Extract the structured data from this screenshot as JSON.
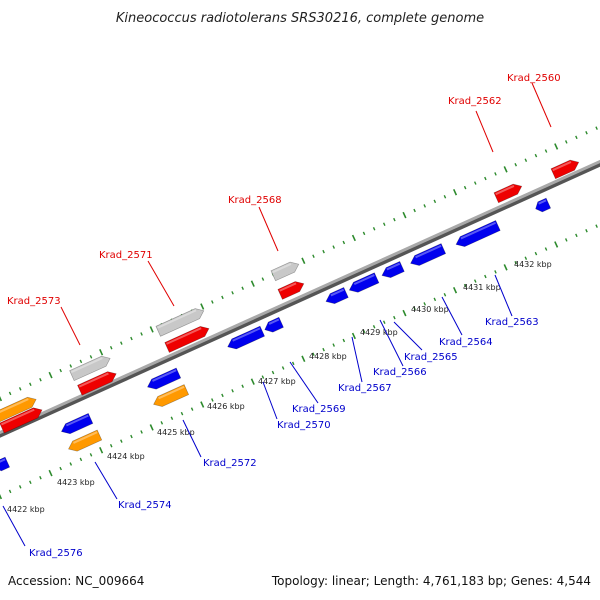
{
  "title": "Kineococcus radiotolerans SRS30216, complete genome",
  "footer": {
    "accession": "Accession: NC_009664",
    "summary": "Topology: linear; Length: 4,761,183 bp; Genes: 4,544"
  },
  "colors": {
    "backbone": "#8c8c8c",
    "ruler_dots": "#2e8b2e",
    "forward_label": "#e00000",
    "reverse_label": "#0000cc",
    "gene_red": "#ee0000",
    "gene_blue": "#0000ee",
    "gene_grey": "#c8c8c8",
    "gene_orange": "#ff9900"
  },
  "ruler_labels": [
    "4422 kbp",
    "4423 kbp",
    "4424 kbp",
    "4425 kbp",
    "4426 kbp",
    "4427 kbp",
    "4428 kbp",
    "4429 kbp",
    "4430 kbp",
    "4431 kbp",
    "4432 kbp"
  ],
  "forward_labels": [
    "Krad_2560",
    "Krad_2562",
    "Krad_2568",
    "Krad_2571",
    "Krad_2573"
  ],
  "reverse_labels": [
    "Krad_2563",
    "Krad_2564",
    "Krad_2565",
    "Krad_2566",
    "Krad_2567",
    "Krad_2569",
    "Krad_2570",
    "Krad_2572",
    "Krad_2574",
    "Krad_2576"
  ]
}
